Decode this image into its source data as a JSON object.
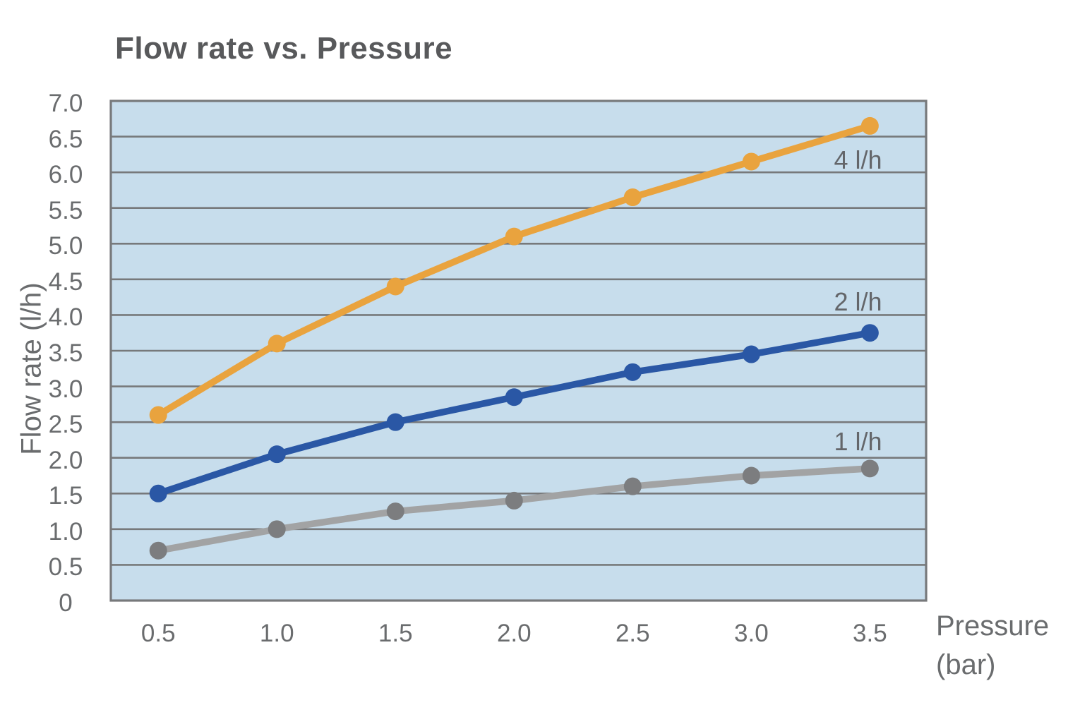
{
  "page": {
    "background": "#ffffff"
  },
  "chart_data": {
    "type": "line",
    "title": "Flow rate vs. Pressure",
    "ylabel": "Flow rate (l/h)",
    "xlabel": "Pressure (bar)",
    "xlabel_line1": "Pressure",
    "xlabel_line2": "(bar)",
    "x": [
      0.5,
      1.0,
      1.5,
      2.0,
      2.5,
      3.0,
      3.5
    ],
    "series": [
      {
        "name": "1 l/h",
        "values": [
          0.7,
          1.0,
          1.25,
          1.4,
          1.6,
          1.75,
          1.85
        ],
        "line_color": "#A2A3A4",
        "marker_color": "#7C7D7F",
        "label_anchor": {
          "x": 3.45,
          "y": 2.22
        }
      },
      {
        "name": "2 l/h",
        "values": [
          1.5,
          2.05,
          2.5,
          2.85,
          3.2,
          3.45,
          3.75
        ],
        "line_color": "#2A57A5",
        "marker_color": "#2A57A5",
        "label_anchor": {
          "x": 3.45,
          "y": 4.18
        }
      },
      {
        "name": "4 l/h",
        "values": [
          2.6,
          3.6,
          4.4,
          5.1,
          5.65,
          6.15,
          6.65
        ],
        "line_color": "#E9A33E",
        "marker_color": "#E9A33E",
        "label_anchor": {
          "x": 3.45,
          "y": 6.17
        }
      }
    ],
    "x_ticks": [
      "0.5",
      "1.0",
      "1.5",
      "2.0",
      "2.5",
      "3.0",
      "3.5"
    ],
    "x_tick_values": [
      0.5,
      1.0,
      1.5,
      2.0,
      2.5,
      3.0,
      3.5
    ],
    "y_ticks": [
      "0",
      "0.5",
      "1.0",
      "1.5",
      "2.0",
      "2.5",
      "3.0",
      "3.5",
      "4.0",
      "4.5",
      "5.0",
      "5.5",
      "6.0",
      "6.5",
      "7.0"
    ],
    "y_tick_values": [
      0,
      0.5,
      1,
      1.5,
      2,
      2.5,
      3,
      3.5,
      4,
      4.5,
      5,
      5.5,
      6,
      6.5,
      7
    ],
    "xlim": [
      0.3,
      3.737
    ],
    "ylim": [
      0,
      7
    ],
    "grid": "horizontal",
    "grid_step": 0.5,
    "legend_position": "inline-labels",
    "colors": {
      "plot_background": "#C7DDEC",
      "grid_line": "#77797B",
      "plot_border": "#77797B",
      "title_text": "#58595B",
      "axis_text": "#6A6C6E"
    }
  }
}
